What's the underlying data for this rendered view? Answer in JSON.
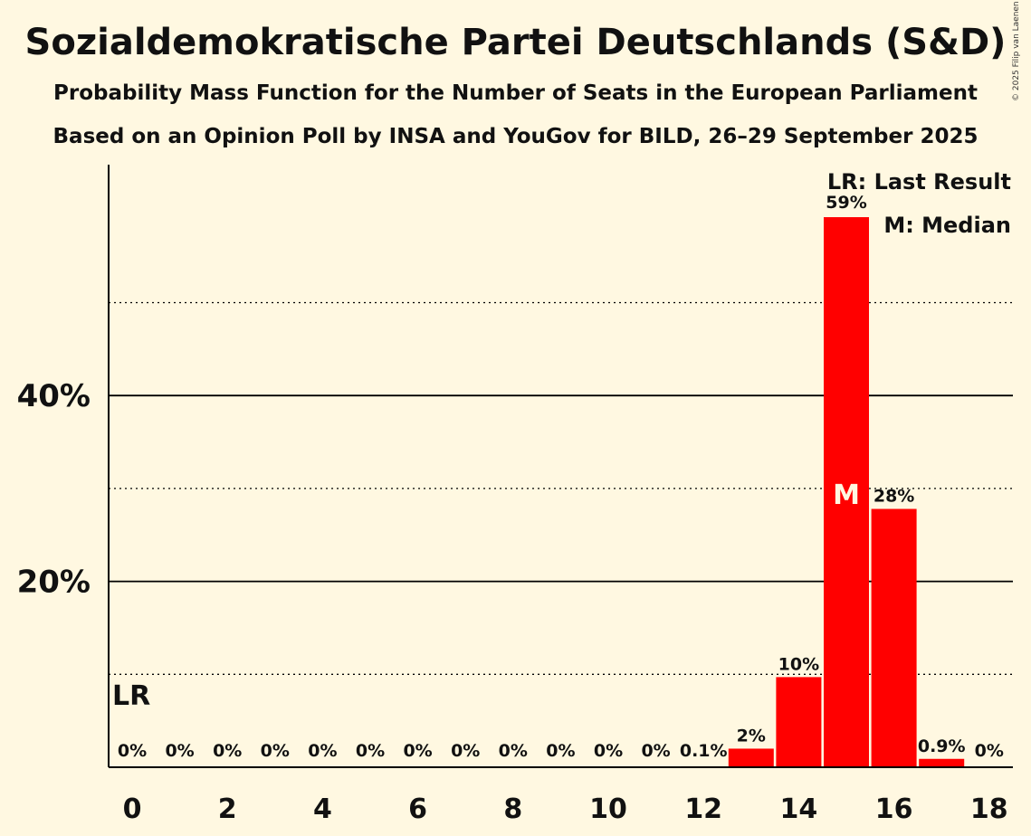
{
  "chart_data": {
    "type": "bar",
    "title": "Sozialdemokratische Partei Deutschlands (S&D)",
    "subtitle": "Probability Mass Function for the Number of Seats in the European Parliament",
    "subtitle2": "Based on an Opinion Poll by INSA and YouGov for BILD, 26–29 September 2025",
    "copyright": "© 2025 Filip van Laenen",
    "categories": [
      0,
      1,
      2,
      3,
      4,
      5,
      6,
      7,
      8,
      9,
      10,
      11,
      12,
      13,
      14,
      15,
      16,
      17,
      18
    ],
    "values": [
      0,
      0,
      0,
      0,
      0,
      0,
      0,
      0,
      0,
      0,
      0,
      0,
      0.1,
      2,
      10,
      59,
      28,
      0.9,
      0
    ],
    "bar_values": [
      0,
      0,
      0,
      0,
      0,
      0,
      0,
      0,
      0,
      0,
      0,
      0,
      0.1,
      2.0,
      9.7,
      59.2,
      27.8,
      0.9,
      0
    ],
    "labels": [
      "0%",
      "0%",
      "0%",
      "0%",
      "0%",
      "0%",
      "0%",
      "0%",
      "0%",
      "0%",
      "0%",
      "0%",
      "0.1%",
      "2%",
      "10%",
      "59%",
      "28%",
      "0.9%",
      "0%"
    ],
    "x_ticks": [
      "0",
      "2",
      "4",
      "6",
      "8",
      "10",
      "12",
      "14",
      "16",
      "18"
    ],
    "y_ticks": [
      "20%",
      "40%"
    ],
    "ylim": [
      0,
      65
    ],
    "bar_color": "#FF0000",
    "median_seat": 15,
    "median_marker": "M",
    "last_result_seat": 0,
    "last_result_marker": "LR",
    "legend": [
      "LR: Last Result",
      "M: Median"
    ]
  }
}
